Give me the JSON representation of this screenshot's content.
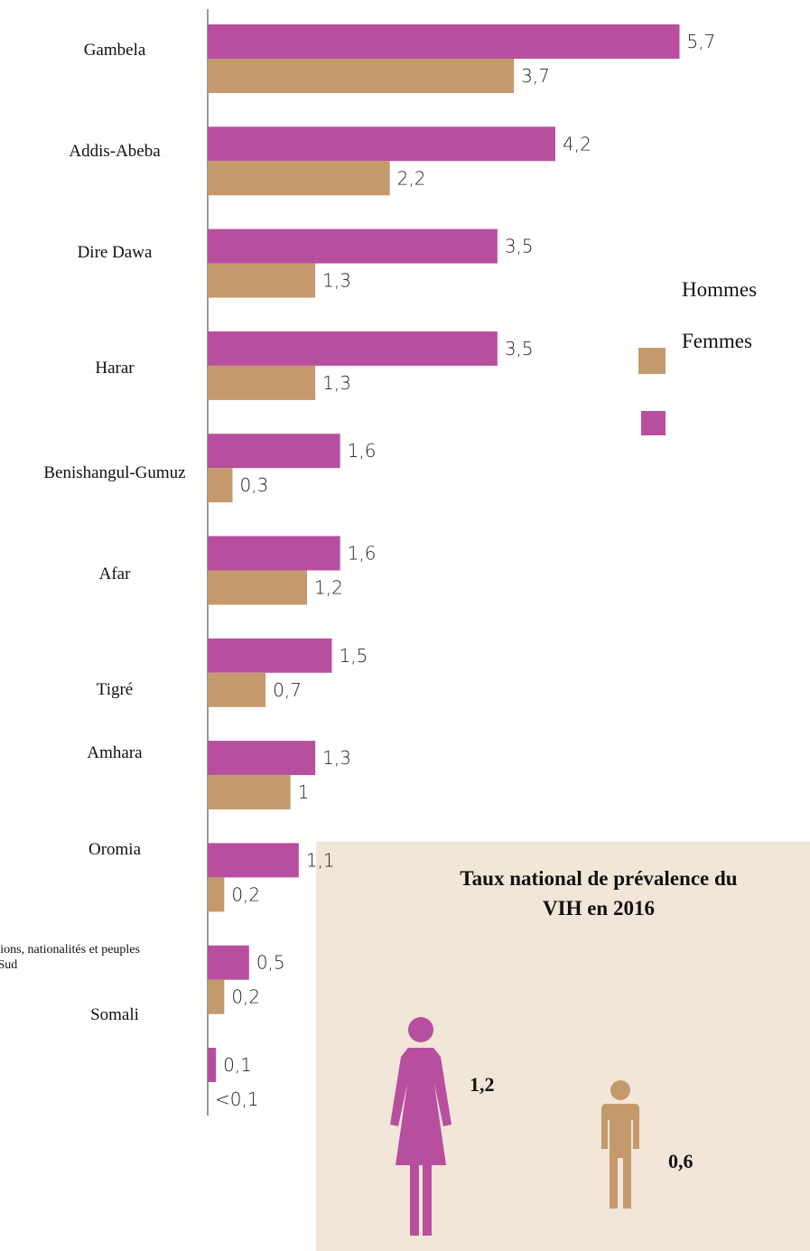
{
  "chart_data": {
    "type": "hbar",
    "categories": [
      "Gambela",
      "Addis-Abeba",
      "Dire Dawa",
      "Harar",
      "Benishangul-Gumuz",
      "Afar",
      "Tigré",
      "Amhara",
      "Oromia",
      "Nations, nationalités et peuples du Sud",
      "Somali"
    ],
    "series": [
      {
        "name": "Hommes",
        "color": "#c49a6c",
        "values": [
          3.7,
          2.2,
          1.3,
          1.3,
          0.3,
          1.2,
          0.7,
          1,
          0.2,
          0.2,
          null
        ],
        "value_labels": [
          "3,7",
          "2,2",
          "1,3",
          "1,3",
          "0,3",
          "1,2",
          "0,7",
          "1",
          "0,2",
          "0,2",
          "<0,1"
        ]
      },
      {
        "name": "Femmes",
        "color": "#b84f9e",
        "values": [
          5.7,
          4.2,
          3.5,
          3.5,
          1.6,
          1.6,
          1.5,
          1.3,
          1.1,
          0.5,
          0.1
        ],
        "value_labels": [
          "5,7",
          "4,2",
          "3,5",
          "3,5",
          "1,6",
          "1,6",
          "1,5",
          "1,3",
          "1,1",
          "0,5",
          "0,1"
        ]
      }
    ],
    "xlim": [
      0,
      6
    ],
    "inset": {
      "title": "Taux national de prévalence du VIH en 2016",
      "values": [
        1.2,
        0.6
      ],
      "value_labels": [
        "1,2",
        "0,6"
      ]
    }
  }
}
